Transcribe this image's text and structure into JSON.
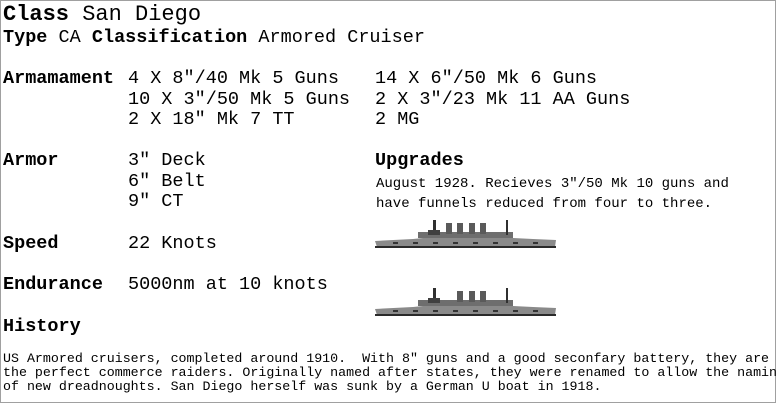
{
  "header": {
    "class_label": "Class",
    "class_value": "San Diego",
    "type_label": "Type",
    "type_value": "CA",
    "classification_label": "Classification",
    "classification_value": "Armored Cruiser"
  },
  "armament": {
    "label": "Armamament",
    "col1": [
      "4 X 8\"/40 Mk 5 Guns",
      "10 X 3\"/50 Mk 5 Guns",
      "2 X 18\" Mk 7 TT"
    ],
    "col2": [
      "14 X 6\"/50 Mk 6 Guns",
      "2 X 3\"/23 Mk 11 AA Guns",
      "2 MG"
    ]
  },
  "armor": {
    "label": "Armor",
    "items": [
      "3\" Deck",
      "6\" Belt",
      "9\" CT"
    ]
  },
  "upgrades": {
    "label": "Upgrades",
    "lines": [
      "August 1928. Recieves 3\"/50 Mk 10 guns and",
      "have funnels reduced from four to three."
    ]
  },
  "speed": {
    "label": "Speed",
    "value": "22 Knots"
  },
  "endurance": {
    "label": "Endurance",
    "value": "5000nm at 10 knots"
  },
  "history": {
    "label": "History",
    "lines": [
      "US Armored cruisers, completed around 1910.  With 8\" guns and a good seconfary battery, they are",
      "the perfect commerce raiders. Originally named after states, they were renamed to allow the naming",
      "of new dreadnoughts. San Diego herself was sunk by a German U boat in 1918."
    ]
  },
  "images": [
    {
      "name": "ship-profile-original",
      "funnels": 4
    },
    {
      "name": "ship-profile-upgraded",
      "funnels": 3
    }
  ]
}
